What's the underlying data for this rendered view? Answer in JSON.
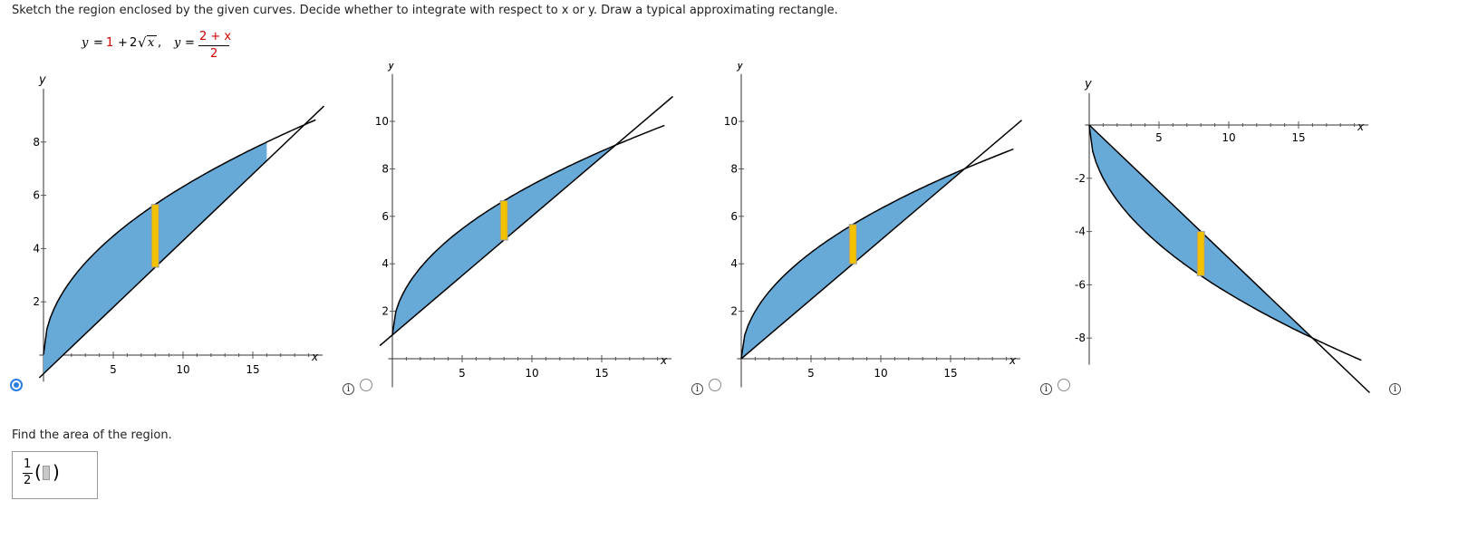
{
  "question": {
    "prompt": "Sketch the region enclosed by the given curves. Decide whether to integrate with respect to x or y. Draw a typical approximating rectangle.",
    "curve1": {
      "lhs": "y",
      "eq": "=",
      "one": "1",
      "plus": "+",
      "two": "2",
      "rad": "x",
      "sep": ","
    },
    "curve2": {
      "lhs": "y",
      "eq": "=",
      "numer": "2 + x",
      "denom": "2"
    }
  },
  "graphs": [
    {
      "name": "graph-a",
      "selected": true,
      "type": "rect",
      "xlabel": "x",
      "ylabel": "y",
      "x_ticks": [
        "5",
        "10",
        "15"
      ],
      "y_ticks": [
        "2",
        "4",
        "6",
        "8"
      ]
    },
    {
      "name": "graph-b",
      "selected": false,
      "type": "rect",
      "xlabel": "x",
      "ylabel": "y",
      "x_ticks": [
        "5",
        "10",
        "15"
      ],
      "y_ticks": [
        "2",
        "4",
        "6",
        "8",
        "10"
      ]
    },
    {
      "name": "graph-c",
      "selected": false,
      "type": "rect",
      "xlabel": "x",
      "ylabel": "y",
      "x_ticks": [
        "5",
        "10",
        "15"
      ],
      "y_ticks": [
        "2",
        "4",
        "6",
        "8",
        "10"
      ]
    },
    {
      "name": "graph-d",
      "selected": false,
      "type": "rect",
      "xlabel": "x",
      "ylabel": "y",
      "x_ticks": [
        "5",
        "10",
        "15"
      ],
      "y_ticks": [
        "-2",
        "-4",
        "-6",
        "-8"
      ]
    }
  ],
  "info_glyph": "i",
  "find_area": {
    "label": "Find the area of the region.",
    "frac_num": "1",
    "frac_den": "2",
    "open_paren": "(",
    "close_paren": ")"
  },
  "colors": {
    "fill": "#67aad8",
    "rect": "#f2c200",
    "accent": "#2a7de1",
    "red": "#d00000"
  }
}
